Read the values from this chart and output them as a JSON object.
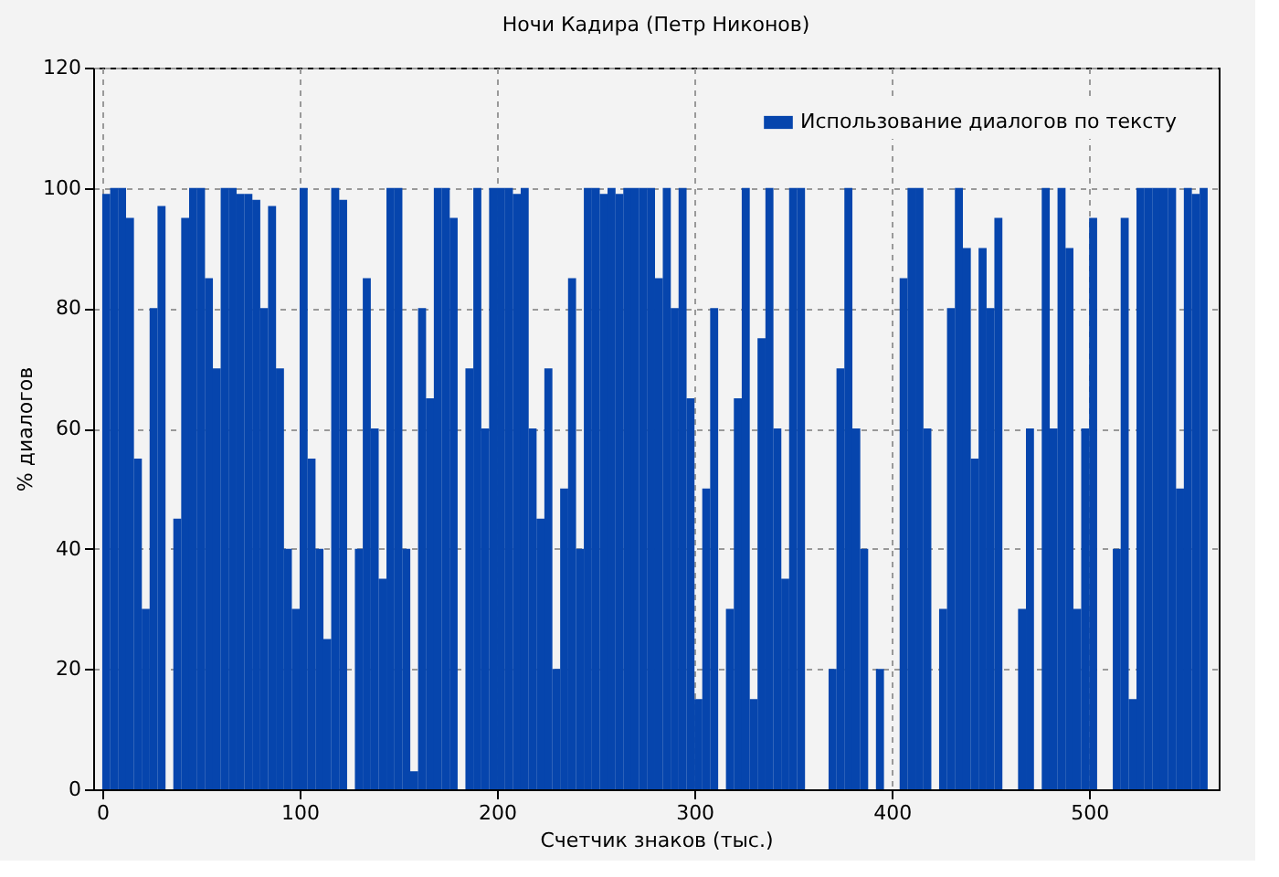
{
  "chart_data": {
    "type": "bar",
    "title": "Ночи Кадира (Петр Никонов)",
    "xlabel": "Счетчик знаков (тыс.)",
    "ylabel": "% диалогов",
    "x": [
      2,
      6,
      10,
      14,
      18,
      22,
      26,
      30,
      34,
      38,
      42,
      46,
      50,
      54,
      58,
      62,
      66,
      70,
      74,
      78,
      82,
      86,
      90,
      94,
      98,
      102,
      106,
      110,
      114,
      118,
      122,
      126,
      130,
      134,
      138,
      142,
      146,
      150,
      154,
      158,
      162,
      166,
      170,
      174,
      178,
      182,
      186,
      190,
      194,
      198,
      202,
      206,
      210,
      214,
      218,
      222,
      226,
      230,
      234,
      238,
      242,
      246,
      250,
      254,
      258,
      262,
      266,
      270,
      274,
      278,
      282,
      286,
      290,
      294,
      298,
      302,
      306,
      310,
      314,
      318,
      322,
      326,
      330,
      334,
      338,
      342,
      346,
      350,
      354,
      358,
      362,
      366,
      370,
      374,
      378,
      382,
      386,
      390,
      394,
      398,
      402,
      406,
      410,
      414,
      418,
      422,
      426,
      430,
      434,
      438,
      442,
      446,
      450,
      454,
      458,
      462,
      466,
      470,
      474,
      478,
      482,
      486,
      490,
      494,
      498,
      502,
      506,
      510,
      514,
      518,
      522,
      526,
      530,
      534,
      538,
      542,
      546,
      550,
      554,
      558
    ],
    "series": [
      {
        "name": "Использование диалогов по тексту",
        "color": "#0645ad",
        "values": [
          99,
          100,
          100,
          95,
          55,
          30,
          80,
          97,
          0,
          45,
          95,
          100,
          100,
          85,
          70,
          100,
          100,
          99,
          99,
          98,
          80,
          97,
          70,
          40,
          30,
          100,
          55,
          40,
          25,
          100,
          98,
          0,
          40,
          85,
          60,
          35,
          100,
          100,
          40,
          3,
          80,
          65,
          100,
          100,
          95,
          0,
          70,
          100,
          60,
          100,
          100,
          100,
          99,
          100,
          60,
          45,
          70,
          20,
          50,
          85,
          40,
          100,
          100,
          99,
          100,
          99,
          100,
          100,
          100,
          100,
          85,
          100,
          80,
          100,
          65,
          15,
          50,
          80,
          0,
          30,
          65,
          100,
          15,
          75,
          100,
          60,
          35,
          100,
          100,
          0,
          0,
          0,
          20,
          70,
          100,
          60,
          40,
          0,
          20,
          0,
          0,
          85,
          100,
          100,
          60,
          0,
          30,
          80,
          100,
          90,
          55,
          90,
          80,
          95,
          0,
          0,
          30,
          60,
          0,
          100,
          60,
          100,
          90,
          30,
          60,
          95,
          0,
          0,
          40,
          95,
          15,
          100,
          100,
          100,
          100,
          100,
          50,
          100,
          99,
          100
        ]
      }
    ],
    "xlim": [
      0,
      561
    ],
    "xticks": [
      0,
      100,
      200,
      300,
      400,
      500
    ],
    "ylim": [
      0,
      120
    ],
    "yticks": [
      0,
      20,
      40,
      60,
      80,
      100,
      120
    ],
    "grid": true,
    "legend": "top right"
  }
}
